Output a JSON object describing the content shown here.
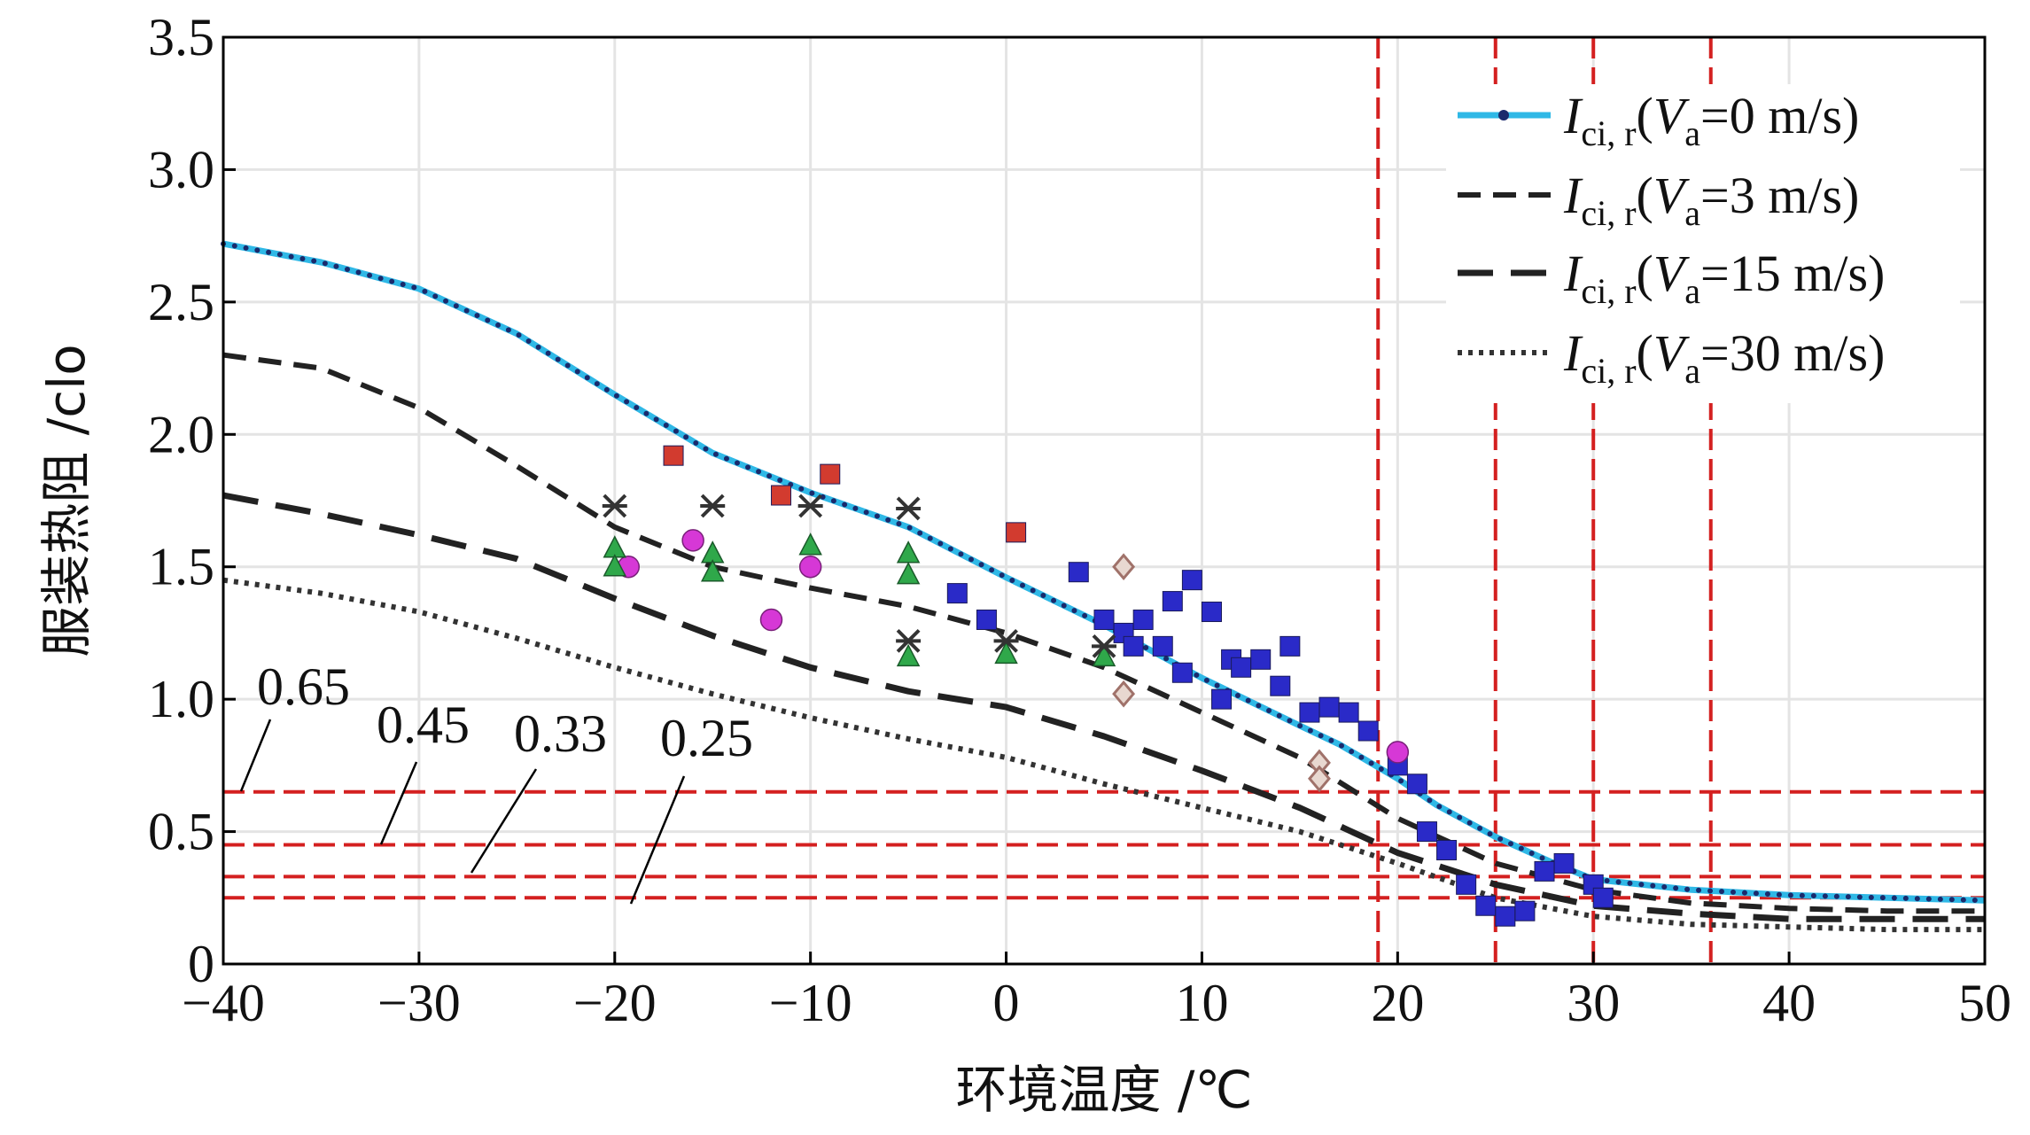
{
  "chart_data": {
    "type": "line",
    "title": "",
    "xlabel": "环境温度 /℃",
    "ylabel": "服装热阻 /clo",
    "xlim": [
      -40,
      50
    ],
    "ylim": [
      0,
      3.5
    ],
    "xticks": [
      -40,
      -30,
      -20,
      -10,
      0,
      10,
      20,
      30,
      40,
      50
    ],
    "xtick_labels": [
      "−40",
      "−30",
      "−20",
      "−10",
      "0",
      "10",
      "20",
      "30",
      "40",
      "50"
    ],
    "yticks": [
      0,
      0.5,
      1.0,
      1.5,
      2.0,
      2.5,
      3.0,
      3.5
    ],
    "ytick_labels": [
      "0",
      "0.5",
      "1.0",
      "1.5",
      "2.0",
      "2.5",
      "3.0",
      "3.5"
    ],
    "grid": true,
    "legend_position": "top-right",
    "series": [
      {
        "name": "Ici, r(Va=0 m/s)",
        "legend": {
          "var_main": "I",
          "var_sub": "ci, r",
          "open": "(",
          "vel_main": "V",
          "vel_sub": "a",
          "rest": "=0 m/s)"
        },
        "style": "blue-dotted",
        "x": [
          -40,
          -35,
          -30,
          -25,
          -20,
          -15,
          -10,
          -5,
          0,
          5,
          10,
          15,
          17,
          20,
          22,
          25,
          28,
          30,
          35,
          40,
          45,
          50
        ],
        "y": [
          2.72,
          2.65,
          2.55,
          2.38,
          2.15,
          1.93,
          1.78,
          1.65,
          1.46,
          1.28,
          1.08,
          0.9,
          0.83,
          0.7,
          0.6,
          0.48,
          0.38,
          0.32,
          0.28,
          0.26,
          0.25,
          0.24
        ]
      },
      {
        "name": "Ici, r(Va=3 m/s)",
        "legend": {
          "var_main": "I",
          "var_sub": "ci, r",
          "open": "(",
          "vel_main": "V",
          "vel_sub": "a",
          "rest": "=3 m/s)"
        },
        "style": "dashed",
        "x": [
          -40,
          -35,
          -30,
          -25,
          -20,
          -15,
          -10,
          -5,
          0,
          5,
          10,
          15,
          20,
          25,
          30,
          35,
          40,
          45,
          50
        ],
        "y": [
          2.3,
          2.25,
          2.1,
          1.88,
          1.65,
          1.5,
          1.42,
          1.35,
          1.25,
          1.12,
          0.95,
          0.78,
          0.55,
          0.38,
          0.28,
          0.23,
          0.21,
          0.2,
          0.2
        ]
      },
      {
        "name": "Ici, r(Va=15 m/s)",
        "legend": {
          "var_main": "I",
          "var_sub": "ci, r",
          "open": "(",
          "vel_main": "V",
          "vel_sub": "a",
          "rest": "=15 m/s)"
        },
        "style": "long-dashed",
        "x": [
          -40,
          -35,
          -30,
          -25,
          -20,
          -15,
          -10,
          -5,
          0,
          5,
          10,
          15,
          20,
          25,
          30,
          35,
          40,
          45,
          50
        ],
        "y": [
          1.77,
          1.7,
          1.62,
          1.53,
          1.38,
          1.24,
          1.12,
          1.03,
          0.97,
          0.86,
          0.73,
          0.59,
          0.42,
          0.3,
          0.22,
          0.19,
          0.17,
          0.17,
          0.17
        ]
      },
      {
        "name": "Ici, r(Va=30 m/s)",
        "legend": {
          "var_main": "I",
          "var_sub": "ci, r",
          "open": "(",
          "vel_main": "V",
          "vel_sub": "a",
          "rest": "=30 m/s)"
        },
        "style": "dotted",
        "x": [
          -40,
          -35,
          -30,
          -25,
          -20,
          -15,
          -10,
          -5,
          0,
          5,
          10,
          15,
          20,
          25,
          30,
          35,
          40,
          45,
          50
        ],
        "y": [
          1.45,
          1.4,
          1.33,
          1.23,
          1.12,
          1.02,
          0.93,
          0.85,
          0.78,
          0.68,
          0.59,
          0.5,
          0.38,
          0.25,
          0.18,
          0.15,
          0.14,
          0.13,
          0.13
        ]
      }
    ],
    "scatter_groups": [
      {
        "marker": "square",
        "color": "#d23b2f",
        "points": [
          [
            -17,
            1.92
          ],
          [
            -11.5,
            1.77
          ],
          [
            -9,
            1.85
          ],
          [
            0.5,
            1.63
          ]
        ]
      },
      {
        "marker": "square",
        "color": "#2a2ac8",
        "points": [
          [
            -2.5,
            1.4
          ],
          [
            -1,
            1.3
          ],
          [
            3.7,
            1.48
          ],
          [
            5,
            1.3
          ],
          [
            6,
            1.25
          ],
          [
            6.5,
            1.2
          ],
          [
            7,
            1.3
          ],
          [
            8,
            1.2
          ],
          [
            8.5,
            1.37
          ],
          [
            9,
            1.1
          ],
          [
            9.5,
            1.45
          ],
          [
            10.5,
            1.33
          ],
          [
            11,
            1.0
          ],
          [
            11.5,
            1.15
          ],
          [
            12,
            1.12
          ],
          [
            13,
            1.15
          ],
          [
            14,
            1.05
          ],
          [
            14.5,
            1.2
          ],
          [
            15.5,
            0.95
          ],
          [
            16.5,
            0.97
          ],
          [
            17.5,
            0.95
          ],
          [
            18.5,
            0.88
          ],
          [
            20,
            0.75
          ],
          [
            21,
            0.68
          ],
          [
            21.5,
            0.5
          ],
          [
            22.5,
            0.43
          ],
          [
            23.5,
            0.3
          ],
          [
            24.5,
            0.22
          ],
          [
            25.5,
            0.18
          ],
          [
            26.5,
            0.2
          ],
          [
            27.5,
            0.35
          ],
          [
            28.5,
            0.38
          ],
          [
            30,
            0.3
          ],
          [
            30.5,
            0.25
          ]
        ]
      },
      {
        "marker": "circle",
        "color": "#d638d6",
        "points": [
          [
            -19.3,
            1.5
          ],
          [
            -16,
            1.6
          ],
          [
            -12,
            1.3
          ],
          [
            -10,
            1.5
          ],
          [
            20,
            0.8
          ]
        ]
      },
      {
        "marker": "triangle",
        "color": "#2fa84a",
        "points": [
          [
            -20,
            1.57
          ],
          [
            -20,
            1.5
          ],
          [
            -15,
            1.55
          ],
          [
            -15,
            1.48
          ],
          [
            -10,
            1.58
          ],
          [
            -5,
            1.55
          ],
          [
            -5,
            1.47
          ],
          [
            -5,
            1.16
          ],
          [
            0,
            1.17
          ],
          [
            5,
            1.16
          ]
        ]
      },
      {
        "marker": "cross",
        "color": "#333333",
        "points": [
          [
            -20,
            1.73
          ],
          [
            -15,
            1.73
          ],
          [
            -10,
            1.73
          ],
          [
            -5,
            1.72
          ],
          [
            -5,
            1.22
          ],
          [
            0,
            1.22
          ],
          [
            5,
            1.2
          ]
        ]
      },
      {
        "marker": "diamond",
        "color": "#a0726a",
        "points": [
          [
            6,
            1.5
          ],
          [
            6,
            1.02
          ],
          [
            16,
            0.76
          ],
          [
            16,
            0.7
          ]
        ]
      }
    ],
    "threshold_lines": {
      "horizontal": [
        0.65,
        0.45,
        0.33,
        0.25
      ],
      "vertical": [
        19,
        25,
        30,
        36
      ],
      "color": "#d42020"
    },
    "annotations": [
      {
        "text": "0.65",
        "target_y": 0.65
      },
      {
        "text": "0.45",
        "target_y": 0.45
      },
      {
        "text": "0.33",
        "target_y": 0.33
      },
      {
        "text": "0.25",
        "target_y": 0.25
      }
    ]
  }
}
